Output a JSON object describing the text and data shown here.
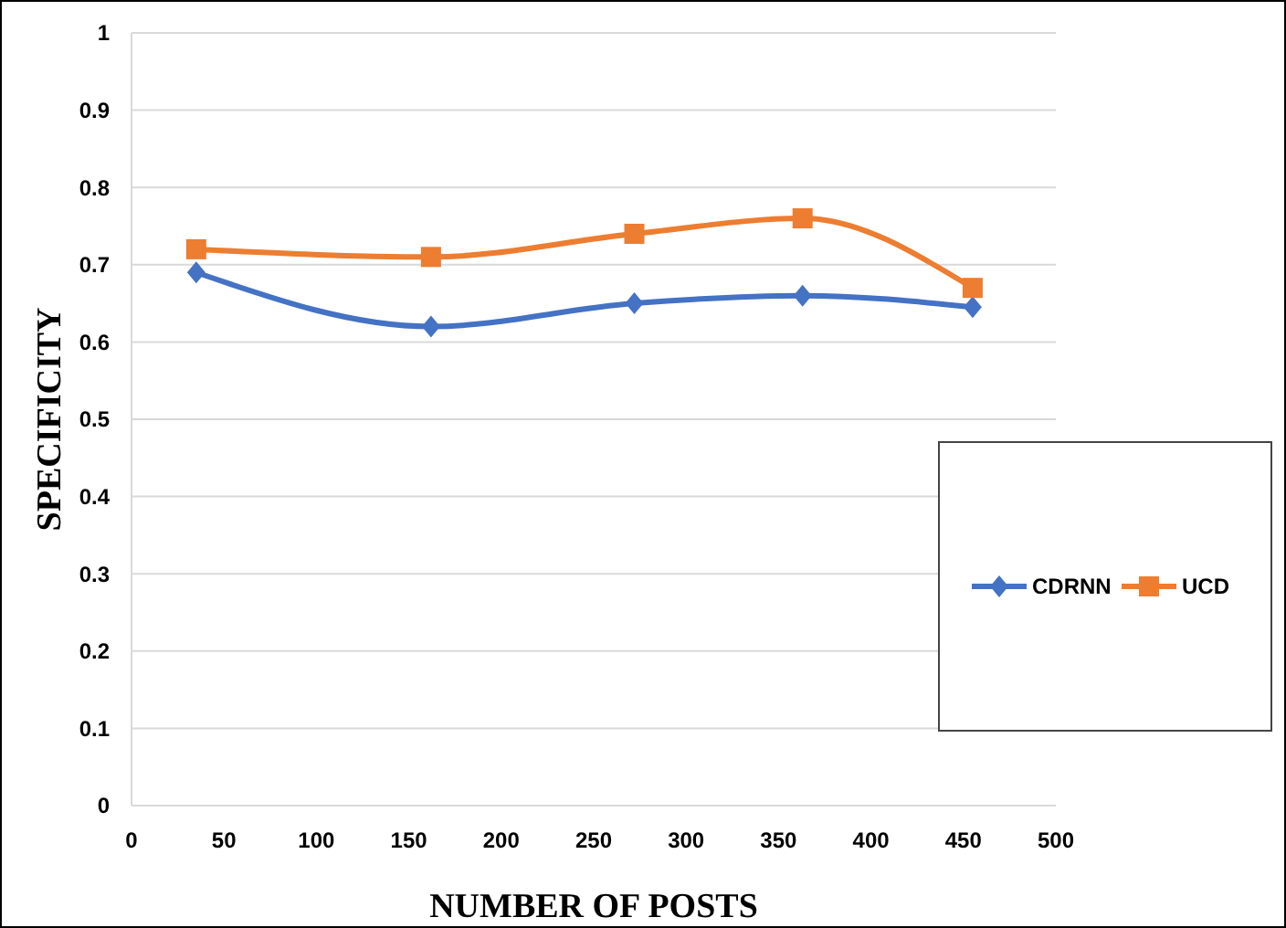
{
  "chart_data": {
    "type": "line",
    "xlabel": "NUMBER OF POSTS",
    "ylabel": "SPECIFICITY",
    "xlim": [
      0,
      500
    ],
    "xticks": [
      0,
      50,
      100,
      150,
      200,
      250,
      300,
      350,
      400,
      450,
      500
    ],
    "ylim": [
      0,
      1
    ],
    "yticks": [
      0,
      0.1,
      0.2,
      0.3,
      0.4,
      0.5,
      0.6,
      0.7,
      0.8,
      0.9,
      1
    ],
    "grid": "y",
    "legend": "right",
    "line_style": "solid",
    "series": [
      {
        "name": "CDRNN",
        "color": "#4472c4",
        "marker": "diamond",
        "x": [
          35,
          162,
          272,
          363,
          455
        ],
        "values": [
          0.69,
          0.62,
          0.65,
          0.66,
          0.645
        ]
      },
      {
        "name": "UCD",
        "color": "#ed7d31",
        "marker": "square",
        "x": [
          35,
          162,
          272,
          363,
          455
        ],
        "values": [
          0.72,
          0.71,
          0.74,
          0.76,
          0.67
        ]
      }
    ]
  }
}
